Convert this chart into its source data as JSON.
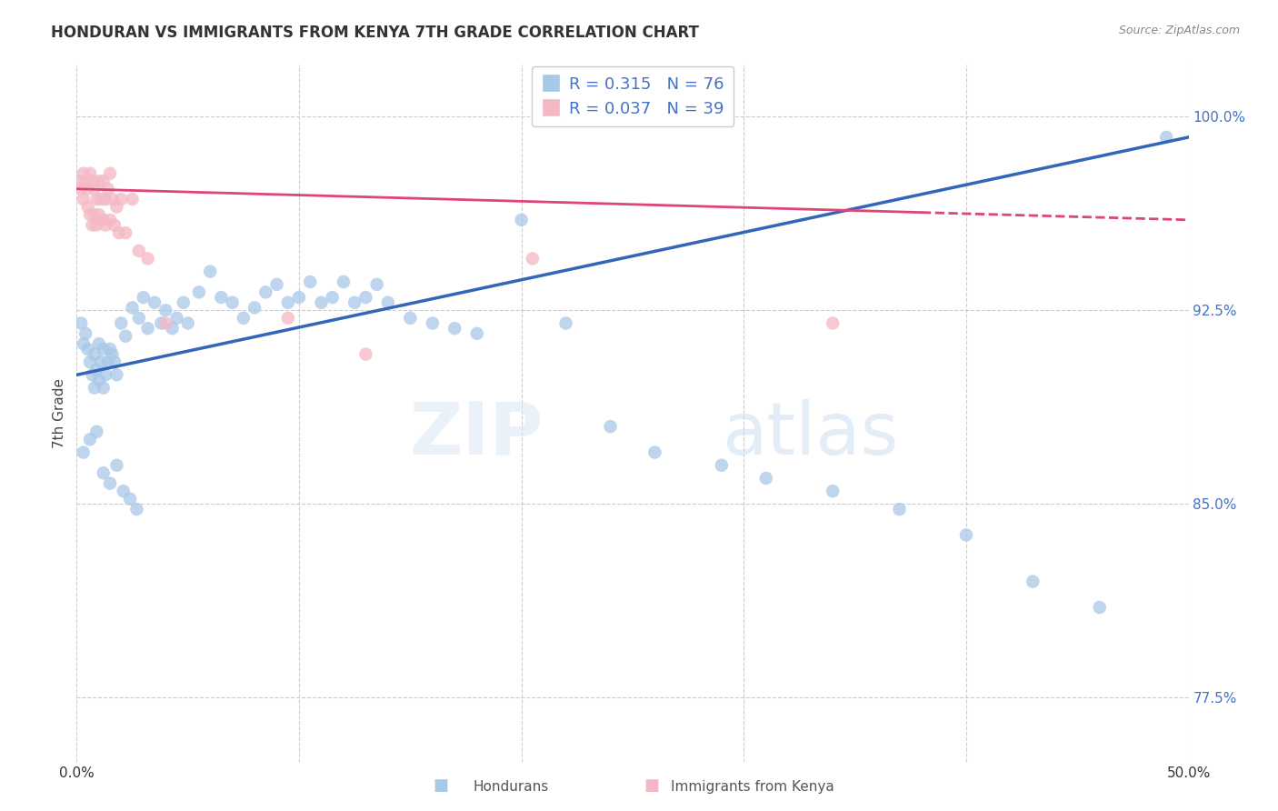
{
  "title": "HONDURAN VS IMMIGRANTS FROM KENYA 7TH GRADE CORRELATION CHART",
  "source": "Source: ZipAtlas.com",
  "ylabel": "7th Grade",
  "xlim": [
    0.0,
    0.5
  ],
  "ylim": [
    0.75,
    1.02
  ],
  "xticks": [
    0.0,
    0.1,
    0.2,
    0.3,
    0.4,
    0.5
  ],
  "yticks_right": [
    0.775,
    0.85,
    0.925,
    1.0
  ],
  "yticklabels_right": [
    "77.5%",
    "85.0%",
    "92.5%",
    "100.0%"
  ],
  "legend_blue_r": "0.315",
  "legend_blue_n": "76",
  "legend_pink_r": "0.037",
  "legend_pink_n": "39",
  "legend_label_blue": "Hondurans",
  "legend_label_pink": "Immigrants from Kenya",
  "blue_color": "#a8c8e8",
  "pink_color": "#f4b8c4",
  "blue_line_color": "#3366bb",
  "pink_line_color": "#dd4477",
  "watermark_zip": "ZIP",
  "watermark_atlas": "atlas",
  "blue_x": [
    0.002,
    0.003,
    0.004,
    0.005,
    0.006,
    0.007,
    0.008,
    0.008,
    0.009,
    0.01,
    0.01,
    0.011,
    0.012,
    0.012,
    0.013,
    0.014,
    0.015,
    0.016,
    0.017,
    0.018,
    0.02,
    0.022,
    0.025,
    0.028,
    0.03,
    0.032,
    0.035,
    0.038,
    0.04,
    0.043,
    0.045,
    0.048,
    0.05,
    0.055,
    0.06,
    0.065,
    0.07,
    0.075,
    0.08,
    0.085,
    0.09,
    0.095,
    0.1,
    0.105,
    0.11,
    0.115,
    0.12,
    0.125,
    0.13,
    0.135,
    0.14,
    0.15,
    0.16,
    0.17,
    0.18,
    0.2,
    0.22,
    0.24,
    0.26,
    0.29,
    0.31,
    0.34,
    0.37,
    0.4,
    0.43,
    0.46,
    0.49,
    0.003,
    0.006,
    0.009,
    0.012,
    0.015,
    0.018,
    0.021,
    0.024,
    0.027
  ],
  "blue_y": [
    0.92,
    0.912,
    0.916,
    0.91,
    0.905,
    0.9,
    0.908,
    0.895,
    0.902,
    0.898,
    0.912,
    0.905,
    0.91,
    0.895,
    0.9,
    0.905,
    0.91,
    0.908,
    0.905,
    0.9,
    0.92,
    0.915,
    0.926,
    0.922,
    0.93,
    0.918,
    0.928,
    0.92,
    0.925,
    0.918,
    0.922,
    0.928,
    0.92,
    0.932,
    0.94,
    0.93,
    0.928,
    0.922,
    0.926,
    0.932,
    0.935,
    0.928,
    0.93,
    0.936,
    0.928,
    0.93,
    0.936,
    0.928,
    0.93,
    0.935,
    0.928,
    0.922,
    0.92,
    0.918,
    0.916,
    0.96,
    0.92,
    0.88,
    0.87,
    0.865,
    0.86,
    0.855,
    0.848,
    0.838,
    0.82,
    0.81,
    0.992,
    0.87,
    0.875,
    0.878,
    0.862,
    0.858,
    0.865,
    0.855,
    0.852,
    0.848
  ],
  "pink_x": [
    0.001,
    0.002,
    0.003,
    0.003,
    0.004,
    0.005,
    0.005,
    0.006,
    0.006,
    0.007,
    0.007,
    0.008,
    0.008,
    0.009,
    0.009,
    0.01,
    0.01,
    0.011,
    0.012,
    0.012,
    0.013,
    0.013,
    0.014,
    0.015,
    0.015,
    0.016,
    0.017,
    0.018,
    0.019,
    0.02,
    0.022,
    0.025,
    0.028,
    0.032,
    0.04,
    0.13,
    0.205,
    0.34,
    0.095
  ],
  "pink_y": [
    0.975,
    0.972,
    0.978,
    0.968,
    0.975,
    0.972,
    0.965,
    0.978,
    0.962,
    0.975,
    0.958,
    0.972,
    0.962,
    0.968,
    0.958,
    0.975,
    0.962,
    0.968,
    0.975,
    0.96,
    0.968,
    0.958,
    0.972,
    0.978,
    0.96,
    0.968,
    0.958,
    0.965,
    0.955,
    0.968,
    0.955,
    0.968,
    0.948,
    0.945,
    0.92,
    0.908,
    0.945,
    0.92,
    0.922
  ],
  "blue_line_x": [
    0.0,
    0.5
  ],
  "blue_line_y": [
    0.9,
    0.992
  ],
  "pink_line_x": [
    0.0,
    0.5
  ],
  "pink_line_y": [
    0.972,
    0.96
  ]
}
